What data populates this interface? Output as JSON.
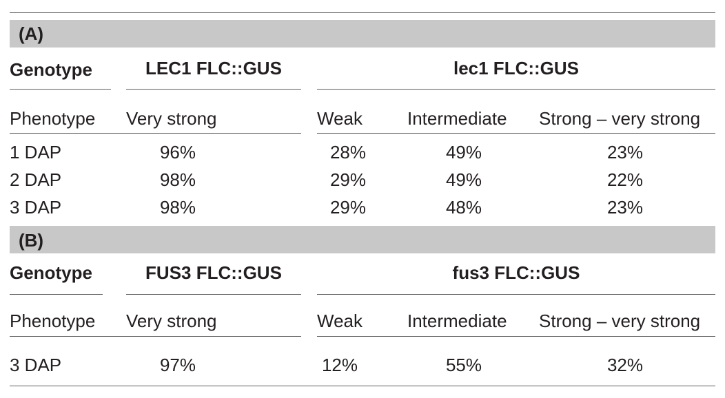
{
  "sections": [
    {
      "label": "(A)",
      "genotype_header": "Genotype",
      "wildtype_genotype": "LEC1 FLC::GUS",
      "mutant_genotype": "lec1 FLC::GUS",
      "phenotype_header": "Phenotype",
      "phenotypes": [
        "Very strong",
        "Weak",
        "Intermediate",
        "Strong – very strong"
      ],
      "rows": [
        {
          "stage": "1 DAP",
          "values": [
            "96%",
            "28%",
            "49%",
            "23%"
          ]
        },
        {
          "stage": "2 DAP",
          "values": [
            "98%",
            "29%",
            "49%",
            "22%"
          ]
        },
        {
          "stage": "3 DAP",
          "values": [
            "98%",
            "29%",
            "48%",
            "23%"
          ]
        }
      ]
    },
    {
      "label": "(B)",
      "genotype_header": "Genotype",
      "wildtype_genotype": "FUS3 FLC::GUS",
      "mutant_genotype": "fus3 FLC::GUS",
      "phenotype_header": "Phenotype",
      "phenotypes": [
        "Very strong",
        "Weak",
        "Intermediate",
        "Strong – very strong"
      ],
      "rows": [
        {
          "stage": "3 DAP",
          "values": [
            "97%",
            "12%",
            "55%",
            "32%"
          ]
        }
      ]
    }
  ]
}
